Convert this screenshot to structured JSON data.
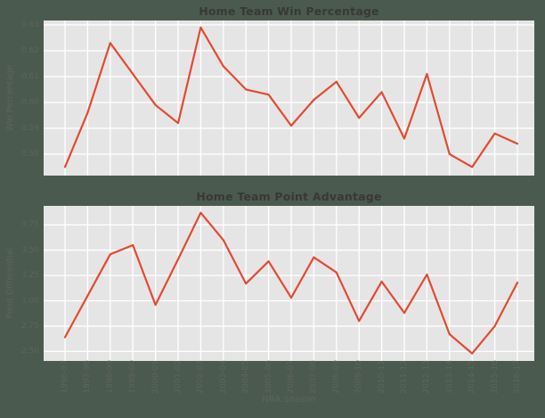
{
  "figure": {
    "background_color": "#4b5a4e",
    "panel_background_color": "#e5e5e5",
    "grid_color": "#ffffff",
    "line_color": "#e24a33",
    "title_color": "#383838",
    "tick_label_color": "#5d645d",
    "axis_label_color": "#5d645d"
  },
  "x_axis": {
    "label": "NBA Season",
    "categories": [
      "1996-97",
      "1997-98",
      "1998-99",
      "1999-00",
      "2000-01",
      "2001-02",
      "2002-03",
      "2003-04",
      "2004-05",
      "2005-06",
      "2006-07",
      "2007-08",
      "2008-09",
      "2009-10",
      "2010-11",
      "2011-12",
      "2012-13",
      "2013-14",
      "2014-15",
      "2015-16",
      "2016-17"
    ]
  },
  "chart_data": [
    {
      "type": "line",
      "title": "Home Team Win Percentage",
      "ylabel": "Win Percentage",
      "xlabel": "NBA Season",
      "categories": [
        "1996-97",
        "1997-98",
        "1998-99",
        "1999-00",
        "2000-01",
        "2001-02",
        "2002-03",
        "2003-04",
        "2004-05",
        "2005-06",
        "2006-07",
        "2007-08",
        "2008-09",
        "2009-10",
        "2010-11",
        "2011-12",
        "2012-13",
        "2013-14",
        "2014-15",
        "2015-16",
        "2016-17"
      ],
      "values": [
        0.575,
        0.596,
        0.623,
        0.611,
        0.599,
        0.592,
        0.629,
        0.614,
        0.605,
        0.603,
        0.591,
        0.601,
        0.608,
        0.594,
        0.604,
        0.586,
        0.611,
        0.58,
        0.575,
        0.588,
        0.584
      ],
      "yticks": [
        0.58,
        0.59,
        0.6,
        0.61,
        0.62,
        0.63
      ],
      "ytick_labels": [
        "0.58",
        "0.59",
        "0.60",
        "0.61",
        "0.62",
        "0.63"
      ],
      "ylim": [
        0.5717,
        0.6317
      ],
      "grid": true,
      "legend": "none"
    },
    {
      "type": "line",
      "title": "Home Team Point Advantage",
      "ylabel": "Point Differential",
      "xlabel": "NBA Season",
      "categories": [
        "1996-97",
        "1997-98",
        "1998-99",
        "1999-00",
        "2000-01",
        "2001-02",
        "2002-03",
        "2003-04",
        "2004-05",
        "2005-06",
        "2006-07",
        "2007-08",
        "2008-09",
        "2009-10",
        "2010-11",
        "2011-12",
        "2012-13",
        "2013-14",
        "2014-15",
        "2015-16",
        "2016-17"
      ],
      "values": [
        2.64,
        3.05,
        3.46,
        3.55,
        2.96,
        3.41,
        3.87,
        3.6,
        3.17,
        3.39,
        3.03,
        3.43,
        3.28,
        2.8,
        3.19,
        2.88,
        3.26,
        2.67,
        2.48,
        2.75,
        3.18
      ],
      "yticks": [
        2.5,
        2.75,
        3.0,
        3.25,
        3.5,
        3.75
      ],
      "ytick_labels": [
        "2.50",
        "2.75",
        "3.00",
        "3.25",
        "3.50",
        "3.75"
      ],
      "ylim": [
        2.406,
        3.9375
      ],
      "grid": true,
      "legend": "none"
    }
  ]
}
